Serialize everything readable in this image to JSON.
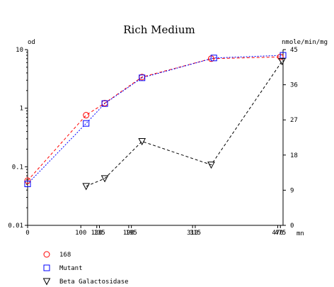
{
  "chart_data": {
    "type": "line",
    "title": "Rich Medium",
    "ylabel_left": "od",
    "ylabel_right": "nmole/min/mg",
    "xlabel": "mn",
    "x_ticks": [
      "0",
      "100",
      "130",
      "135",
      "190",
      "195",
      "310",
      "315",
      "470",
      "475"
    ],
    "x_range": [
      0,
      480
    ],
    "y_left_ticks": [
      "10",
      "1",
      "0.1",
      "0.01"
    ],
    "y_left_range": [
      0.01,
      10
    ],
    "y_left_scale": "log",
    "y_right_ticks": [
      "45",
      "36",
      "27",
      "18",
      "9",
      "0"
    ],
    "y_right_range": [
      0,
      45
    ],
    "legend_position": "bottom-left",
    "series": [
      {
        "name": "168",
        "axis": "left",
        "marker": "circle",
        "color": "#ff0000",
        "line_color": "#ff0000",
        "dash": "dashed",
        "x": [
          0,
          110,
          145,
          215,
          345,
          475
        ],
        "y": [
          0.058,
          0.76,
          1.22,
          3.4,
          7.0,
          7.5
        ]
      },
      {
        "name": "Mutant",
        "axis": "left",
        "marker": "square",
        "color": "#0000ff",
        "line_color": "#0000ff",
        "dash": "dotted",
        "x": [
          0,
          110,
          145,
          215,
          350,
          480
        ],
        "y": [
          0.051,
          0.55,
          1.2,
          3.3,
          7.2,
          8.0
        ]
      },
      {
        "name": "Beta Galactosidase",
        "axis": "right",
        "marker": "triangle-down",
        "color": "#000000",
        "line_color": "#000000",
        "dash": "dashed",
        "x": [
          110,
          145,
          215,
          345,
          478
        ],
        "y": [
          10,
          12,
          21.5,
          15.5,
          42
        ]
      }
    ]
  }
}
